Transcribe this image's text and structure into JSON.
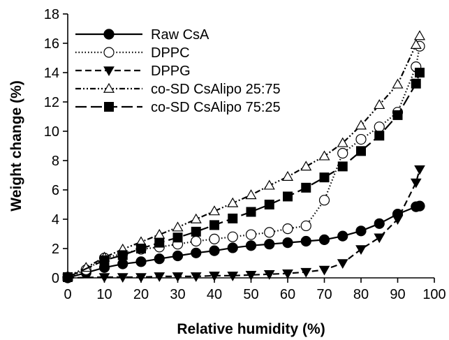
{
  "chart_data": {
    "type": "line",
    "xlabel": "Relative humidity (%)",
    "ylabel": "Weight change (%)",
    "xlim": [
      0,
      100
    ],
    "ylim": [
      0,
      18
    ],
    "xticks": [
      0,
      10,
      20,
      30,
      40,
      50,
      60,
      70,
      80,
      90,
      100
    ],
    "yticks": [
      0,
      2,
      4,
      6,
      8,
      10,
      12,
      14,
      16,
      18
    ],
    "xtick_labels": [
      "0",
      "10",
      "20",
      "30",
      "40",
      "50",
      "60",
      "70",
      "80",
      "90",
      "100"
    ],
    "ytick_labels": [
      "0",
      "2",
      "4",
      "6",
      "8",
      "10",
      "12",
      "14",
      "16",
      "18"
    ],
    "grid": false,
    "legend_position": "top-left",
    "series": [
      {
        "name": "Raw CsA",
        "line_style": "solid",
        "marker": "filled-circle",
        "x": [
          0,
          5,
          10,
          15,
          20,
          25,
          30,
          35,
          40,
          45,
          50,
          55,
          60,
          65,
          70,
          75,
          80,
          85,
          90,
          95,
          96
        ],
        "y": [
          0.0,
          0.35,
          0.7,
          0.95,
          1.1,
          1.3,
          1.5,
          1.7,
          1.85,
          2.05,
          2.2,
          2.3,
          2.4,
          2.5,
          2.6,
          2.85,
          3.2,
          3.7,
          4.35,
          4.85,
          4.9
        ]
      },
      {
        "name": "DPPC",
        "line_style": "dotted",
        "marker": "open-circle",
        "x": [
          0,
          5,
          10,
          15,
          20,
          25,
          30,
          35,
          40,
          45,
          50,
          55,
          60,
          65,
          70,
          75,
          80,
          85,
          90,
          95,
          96
        ],
        "y": [
          0.05,
          0.55,
          1.35,
          1.65,
          1.95,
          2.1,
          2.3,
          2.5,
          2.65,
          2.8,
          2.95,
          3.1,
          3.35,
          3.55,
          5.3,
          8.5,
          9.45,
          10.3,
          11.3,
          14.4,
          15.8
        ]
      },
      {
        "name": "DPPG",
        "line_style": "dashed",
        "marker": "filled-triangle-down",
        "x": [
          0,
          10,
          15,
          20,
          25,
          30,
          35,
          40,
          45,
          50,
          55,
          60,
          65,
          70,
          75,
          80,
          85,
          90,
          95,
          96
        ],
        "y": [
          0.0,
          0.05,
          0.05,
          0.05,
          0.1,
          0.1,
          0.1,
          0.15,
          0.15,
          0.2,
          0.25,
          0.3,
          0.4,
          0.55,
          1.0,
          1.95,
          2.75,
          4.0,
          6.5,
          7.4
        ]
      },
      {
        "name": "co-SD CsAlipo 25:75",
        "line_style": "dash-dot-dot",
        "marker": "open-triangle-up",
        "x": [
          0,
          5,
          10,
          15,
          20,
          25,
          30,
          35,
          40,
          45,
          50,
          55,
          60,
          65,
          70,
          75,
          80,
          85,
          90,
          95,
          96
        ],
        "y": [
          0.1,
          0.7,
          1.4,
          1.95,
          2.45,
          2.95,
          3.45,
          4.0,
          4.55,
          5.1,
          5.65,
          6.3,
          6.9,
          7.6,
          8.3,
          9.2,
          10.4,
          11.8,
          13.2,
          15.9,
          16.5
        ]
      },
      {
        "name": "co-SD CsAlipo 75:25",
        "line_style": "long-dash",
        "marker": "filled-square",
        "x": [
          0,
          10,
          15,
          20,
          25,
          30,
          35,
          40,
          45,
          50,
          55,
          60,
          65,
          70,
          75,
          80,
          85,
          90,
          95,
          96
        ],
        "y": [
          0.05,
          1.2,
          1.55,
          2.0,
          2.4,
          2.75,
          3.15,
          3.6,
          4.05,
          4.5,
          5.0,
          5.55,
          6.15,
          6.85,
          7.6,
          8.65,
          9.7,
          11.1,
          13.25,
          14.0
        ]
      }
    ]
  }
}
